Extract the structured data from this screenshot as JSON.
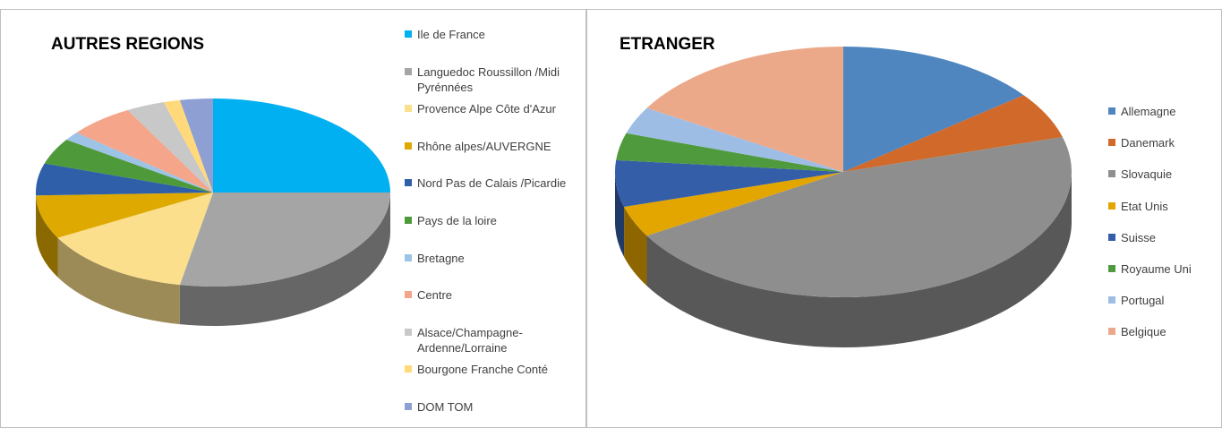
{
  "chart_data": [
    {
      "type": "pie",
      "title": "AUTRES REGIONS",
      "categories": [
        "Ile de France",
        "Languedoc Roussillon /Midi Pyrénnées",
        "Provence Alpe Côte d'Azur",
        "Rhône alpes/AUVERGNE",
        "Nord Pas de Calais /Picardie",
        "Pays de la loire",
        "Bretagne",
        "Centre",
        "Alsace/Champagne-Ardenne/Lorraine",
        "Bourgone Franche Conté",
        "DOM TOM"
      ],
      "values": [
        25,
        28,
        14,
        7.5,
        5.5,
        4.5,
        1.5,
        6,
        3.5,
        1.5,
        3
      ],
      "colors": [
        "#00b0f0",
        "#a5a5a5",
        "#fbdf8c",
        "#dea900",
        "#2e5fa8",
        "#4e9a3a",
        "#9dc3e6",
        "#f4a58a",
        "#c8c8c8",
        "#ffd97a",
        "#8e9fd4"
      ]
    },
    {
      "type": "pie",
      "title": "ETRANGER",
      "categories": [
        "Allemagne",
        "Danemark",
        "Slovaquie",
        "Etat Unis",
        "Suisse",
        "Royaume Uni",
        "Portugal",
        "Belgique"
      ],
      "values": [
        14.5,
        6,
        46,
        4,
        6,
        3.5,
        3.5,
        16.5
      ],
      "colors": [
        "#4f86c0",
        "#d0692a",
        "#8e8e8e",
        "#e3a500",
        "#345ea8",
        "#4f9a3c",
        "#9dbde4",
        "#eca98a"
      ]
    }
  ]
}
